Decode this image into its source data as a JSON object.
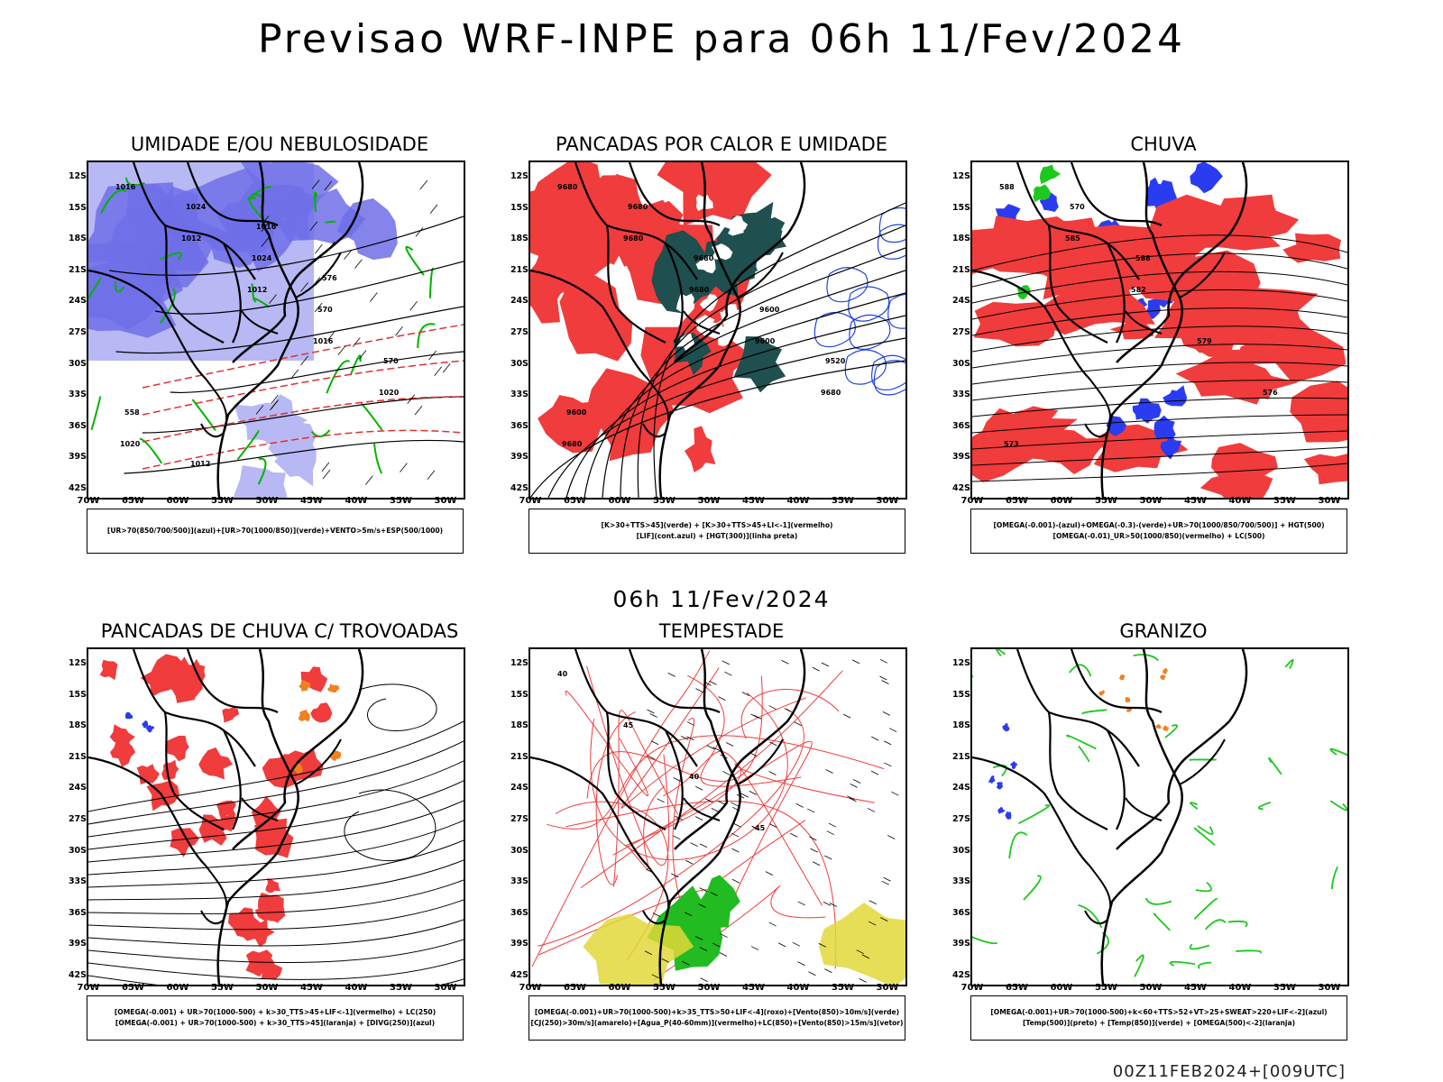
{
  "title": "Previsao WRF-INPE  para 06h 11/Fev/2024",
  "mid_title": "06h 11/Fev/2024",
  "footer": "00Z11FEB2024+[009UTC]",
  "axes": {
    "lat_labels": [
      "12S",
      "15S",
      "18S",
      "21S",
      "24S",
      "27S",
      "30S",
      "33S",
      "36S",
      "39S",
      "42S"
    ],
    "lon_labels": [
      "70W",
      "65W",
      "60W",
      "55W",
      "50W",
      "45W",
      "40W",
      "35W",
      "30W"
    ]
  },
  "panels": [
    {
      "id": "umidade",
      "title": "UMIDADE E/OU NEBULOSIDADE",
      "legend": [
        "[UR>70(850/700/500)](azul)+[UR>70(1000/850)](verde)+VENTO>5m/s+ESP(500/1000)"
      ],
      "labels": [
        "1016",
        "1012",
        "1012",
        "1016",
        "1020",
        "1020",
        "1024",
        "1024",
        "570",
        "570",
        "558",
        "1012",
        "1016",
        "576"
      ],
      "colors": {
        "fill": "#6f6fe8",
        "fill_light": "#b8b8f4",
        "contour": "#00b400",
        "isobar": "#000000",
        "thickness": "#e03030"
      }
    },
    {
      "id": "pancadas-calor",
      "title": "PANCADAS POR CALOR E UMIDADE",
      "legend": [
        "[K>30+TTS>45](verde) + [K>30+TTS>45+LI<-1](vermelho)",
        "[LIF](cont.azul) + [HGT(300)](linha preta)"
      ],
      "labels": [
        "9680",
        "9680",
        "9680",
        "9600",
        "9680",
        "9680",
        "9680",
        "9680",
        "9600",
        "9520",
        "9600"
      ],
      "colors": {
        "fill": "#f03c3c",
        "fill2": "#1f4f4f",
        "contour": "#2244dd",
        "isohypse": "#000000"
      }
    },
    {
      "id": "chuva",
      "title": "CHUVA",
      "legend": [
        "[OMEGA(-0.001)-(azul)+OMEGA(-0.3)-(verde)+UR>70(1000/850/700/500)] + HGT(500)",
        "[OMEGA(-0.01)_UR>50(1000/850)(vermelho) + LC(500)"
      ],
      "labels": [
        "588",
        "585",
        "582",
        "579",
        "576",
        "573",
        "570",
        "588"
      ],
      "colors": {
        "fill_red": "#f03c3c",
        "fill_blue": "#2a3cf0",
        "fill_green": "#1ec81e",
        "contour": "#000000"
      }
    },
    {
      "id": "trovoadas",
      "title": "PANCADAS DE CHUVA C/ TROVOADAS",
      "legend": [
        "[OMEGA(-0.001) + UR>70(1000-500) + k>30_TTS>45+LIF<-1](vermelho) + LC(250)",
        "[OMEGA(-0.001) + UR>70(1000-500) + k>30_TTS>45](laranja) + [DIVG(250)](azul)"
      ],
      "colors": {
        "fill_red": "#f03c3c",
        "fill_orange": "#f08020",
        "fill_blue": "#2a3cf0",
        "streamline": "#000000"
      }
    },
    {
      "id": "tempestade",
      "title": "TEMPESTADE",
      "legend": [
        "[OMEGA(-0.001)+UR>70(1000-500)+k>35_TTS>50+LIF<-4](roxo)+[Vento(850)>10m/s](verde)",
        "[CJ(250)>30m/s](amarelo)+[Agua_P(40-60mm)](vermelho)+LC(850)+[Vento(850)>15m/s](vetor)"
      ],
      "labels": [
        "40",
        "45",
        "40",
        "45"
      ],
      "colors": {
        "fill_green": "#22bb22",
        "fill_yellow": "#e0d838",
        "contour": "#f03c3c",
        "vector": "#000000"
      }
    },
    {
      "id": "granizo",
      "title": "GRANIZO",
      "legend": [
        "[OMEGA(-0.001)+UR>70(1000-500)+k<60+TTS>52+VT>25+SWEAT>220+LIF<-2](azul)",
        "[Temp(500)](preto) + [Temp(850)](verde) + [OMEGA(500)<-2](laranja)"
      ],
      "colors": {
        "contour_green": "#1ec81e",
        "fill_orange": "#f08020",
        "fill_blue": "#2a3cf0",
        "contour": "#000000"
      }
    }
  ]
}
